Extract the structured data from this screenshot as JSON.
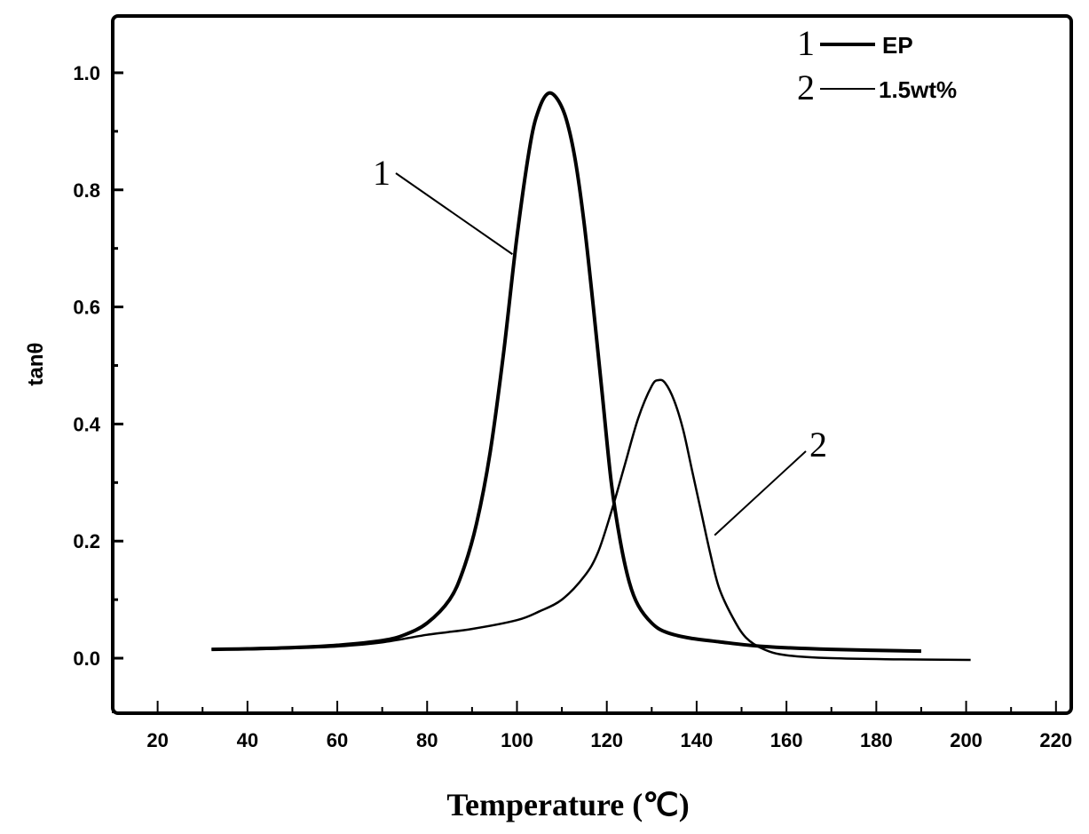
{
  "chart_data": {
    "type": "line",
    "title": "",
    "xlabel": "Temperature (℃)",
    "ylabel": "tanθ",
    "xlim": [
      10,
      223.4
    ],
    "ylim": [
      -0.094,
      1.097
    ],
    "grid": false,
    "x_ticks": [
      20,
      40,
      60,
      80,
      100,
      120,
      140,
      160,
      180,
      200,
      220
    ],
    "x_tick_labels": [
      "20",
      "40",
      "60",
      "80",
      "100",
      "120",
      "140",
      "160",
      "180",
      "200",
      "220"
    ],
    "y_ticks": [
      0.0,
      0.2,
      0.4,
      0.6,
      0.8,
      1.0
    ],
    "y_tick_labels": [
      "0.0",
      "0.2",
      "0.4",
      "0.6",
      "0.8",
      "1.0"
    ],
    "legend_placement": "top-right",
    "series": [
      {
        "id": "1",
        "name": "EP",
        "x": [
          32,
          40,
          50,
          60,
          70,
          75,
          80,
          85,
          88,
          91,
          94,
          97,
          100,
          103,
          105,
          107,
          109,
          111,
          113,
          115,
          117,
          119,
          121,
          123,
          125,
          127,
          130,
          133,
          138,
          145,
          155,
          170,
          190
        ],
        "y": [
          0.015,
          0.016,
          0.018,
          0.022,
          0.03,
          0.04,
          0.06,
          0.1,
          0.15,
          0.23,
          0.35,
          0.52,
          0.72,
          0.88,
          0.94,
          0.965,
          0.955,
          0.92,
          0.85,
          0.74,
          0.6,
          0.45,
          0.3,
          0.2,
          0.13,
          0.09,
          0.06,
          0.045,
          0.035,
          0.028,
          0.02,
          0.015,
          0.012
        ]
      },
      {
        "id": "2",
        "name": "1.5wt%",
        "x": [
          32,
          40,
          50,
          60,
          70,
          80,
          90,
          100,
          105,
          110,
          115,
          118,
          121,
          124,
          127,
          130,
          131.5,
          133,
          135,
          137,
          139,
          141,
          143,
          145,
          148,
          151,
          155,
          160,
          170,
          185,
          201
        ],
        "y": [
          0.015,
          0.015,
          0.017,
          0.02,
          0.027,
          0.04,
          0.05,
          0.065,
          0.08,
          0.1,
          0.14,
          0.18,
          0.25,
          0.33,
          0.41,
          0.465,
          0.475,
          0.47,
          0.44,
          0.39,
          0.32,
          0.25,
          0.18,
          0.12,
          0.07,
          0.035,
          0.015,
          0.005,
          0.0,
          -0.002,
          -0.003
        ]
      }
    ],
    "annotations": [
      {
        "text": "1",
        "series": "1",
        "points_to": [
          99,
          0.69
        ]
      },
      {
        "text": "2",
        "series": "2",
        "points_to": [
          144,
          0.21
        ]
      }
    ]
  }
}
